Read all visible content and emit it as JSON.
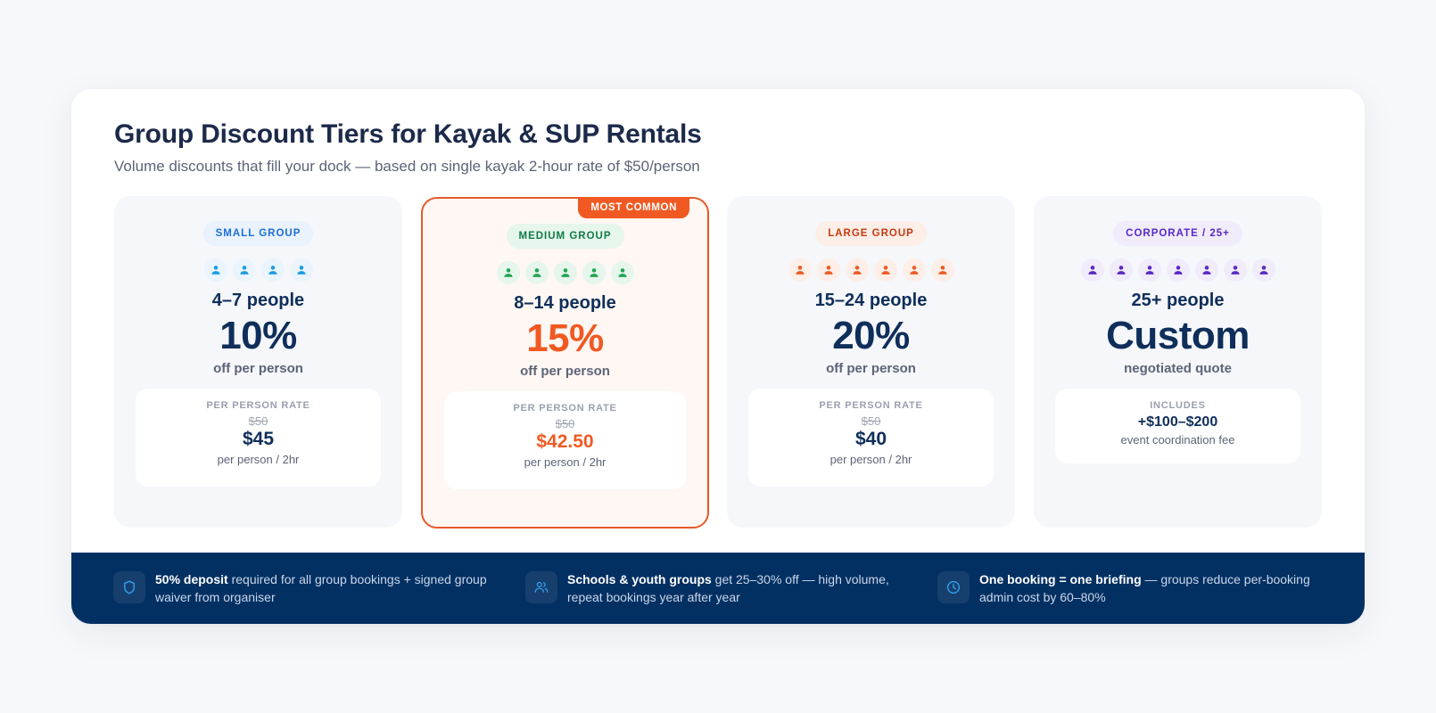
{
  "header": {
    "title": "Group Discount Tiers for Kayak & SUP Rentals",
    "subtitle": "Volume discounts that fill your dock — based on single kayak 2-hour rate of $50/person"
  },
  "tiers": [
    {
      "label": "SMALL GROUP",
      "label_color": "#1d6fd8",
      "label_bg": "#e9f2fd",
      "icon_color": "#1a9de3",
      "icon_bg": "#eaf4fc",
      "people_icons": 4,
      "range": "4–7 people",
      "discount": "10%",
      "discount_color": "#0f2e5a",
      "discount_sub": "off per person",
      "box_label": "PER PERSON RATE",
      "old_price": "$50",
      "new_price": "$45",
      "new_price_color": "#0f2e5a",
      "unit": "per person / 2hr"
    },
    {
      "label": "MEDIUM GROUP",
      "label_color": "#0f7a45",
      "label_bg": "#e6f6ec",
      "icon_color": "#22a553",
      "icon_bg": "#e6f6ec",
      "people_icons": 5,
      "range": "8–14 people",
      "discount": "15%",
      "discount_color": "#f05a22",
      "discount_sub": "off per person",
      "box_label": "PER PERSON RATE",
      "old_price": "$50",
      "new_price": "$42.50",
      "new_price_color": "#f05a22",
      "unit": "per person / 2hr",
      "featured": true,
      "featured_badge": "MOST COMMON"
    },
    {
      "label": "LARGE GROUP",
      "label_color": "#c43c12",
      "label_bg": "#fdeee7",
      "icon_color": "#ee5a24",
      "icon_bg": "#fdeee7",
      "people_icons": 6,
      "range": "15–24 people",
      "discount": "20%",
      "discount_color": "#0f2e5a",
      "discount_sub": "off per person",
      "box_label": "PER PERSON RATE",
      "old_price": "$50",
      "new_price": "$40",
      "new_price_color": "#0f2e5a",
      "unit": "per person / 2hr"
    },
    {
      "label": "CORPORATE / 25+",
      "label_color": "#5a28c8",
      "label_bg": "#f0ecfb",
      "icon_color": "#5a28c8",
      "icon_bg": "#f0ecfb",
      "people_icons": 7,
      "range": "25+ people",
      "discount": "Custom",
      "discount_color": "#0f2e5a",
      "discount_sub": "negotiated quote",
      "box_label": "INCLUDES",
      "includes_value": "+$100–$200",
      "unit": "event coordination fee"
    }
  ],
  "footer": {
    "notes": [
      {
        "icon": "shield-icon",
        "bold": "50% deposit",
        "text": " required for all group bookings + signed group waiver from organiser"
      },
      {
        "icon": "users-icon",
        "bold": "Schools & youth groups",
        "text": " get 25–30% off — high volume, repeat bookings year after year"
      },
      {
        "icon": "clock-icon",
        "bold": "One booking = one briefing",
        "text": " — groups reduce per-booking admin cost by 60–80%"
      }
    ],
    "icon_color": "#2f9be8"
  }
}
